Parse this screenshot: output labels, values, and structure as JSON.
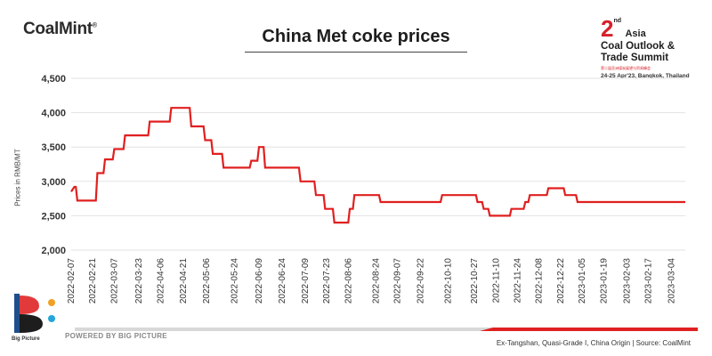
{
  "brand": {
    "logo_text": "CoalMint",
    "registered": "®"
  },
  "event": {
    "number": "2",
    "ordinal": "nd",
    "region": "Asia",
    "line1": "Coal Outlook &",
    "line2": "Trade Summit",
    "subline": "第二届亚洲煤炭展望与贸易峰会",
    "date": "24-25 Apr'23, Bangkok, Thailand"
  },
  "footer": {
    "bp_label": "Big Picture",
    "powered": "POWERED BY BIG PICTURE",
    "source": "Ex-Tangshan, Quasi-Grade I, China Origin | Source: CoalMint"
  },
  "colors": {
    "line": "#e02020",
    "accent": "#d6202a",
    "grid": "#e2e2e2"
  },
  "chart_data": {
    "type": "line",
    "title": "China Met coke prices",
    "xlabel": "",
    "ylabel": "Prices in RMB/MT",
    "ylim": [
      2000,
      4500
    ],
    "yticks": [
      2000,
      2500,
      3000,
      3500,
      4000,
      4500
    ],
    "ytick_labels": [
      "2,000",
      "2,500",
      "3,000",
      "3,500",
      "4,000",
      "4,500"
    ],
    "grid": true,
    "xticks": [
      "2022-02-07",
      "2022-02-21",
      "2022-03-07",
      "2022-03-23",
      "2022-04-06",
      "2022-04-21",
      "2022-05-06",
      "2022-05-24",
      "2022-06-09",
      "2022-06-24",
      "2022-07-09",
      "2022-07-23",
      "2022-08-06",
      "2022-08-24",
      "2022-09-07",
      "2022-09-22",
      "2022-10-10",
      "2022-10-27",
      "2022-11-10",
      "2022-11-24",
      "2022-12-08",
      "2022-12-22",
      "2023-01-05",
      "2023-01-19",
      "2023-02-03",
      "2023-02-17",
      "2023-03-04"
    ],
    "series": [
      {
        "x": [
          "2022-02-07",
          "2022-02-09",
          "2022-02-10",
          "2022-02-11",
          "2022-02-23",
          "2022-02-24",
          "2022-02-28",
          "2022-03-01",
          "2022-03-06",
          "2022-03-07",
          "2022-03-13",
          "2022-03-14",
          "2022-03-29",
          "2022-03-30",
          "2022-04-12",
          "2022-04-13",
          "2022-04-25",
          "2022-04-26",
          "2022-05-04",
          "2022-05-05",
          "2022-05-09",
          "2022-05-10",
          "2022-05-16",
          "2022-05-17",
          "2022-05-23",
          "2022-05-24",
          "2022-06-03",
          "2022-06-04",
          "2022-06-08",
          "2022-06-09",
          "2022-06-12",
          "2022-06-13",
          "2022-06-16",
          "2022-06-17",
          "2022-06-18",
          "2022-06-19",
          "2022-07-05",
          "2022-07-06",
          "2022-07-15",
          "2022-07-16",
          "2022-07-21",
          "2022-07-22",
          "2022-07-27",
          "2022-07-28",
          "2022-08-06",
          "2022-08-07",
          "2022-08-09",
          "2022-08-10",
          "2022-08-26",
          "2022-08-27",
          "2022-10-05",
          "2022-10-06",
          "2022-10-28",
          "2022-10-29",
          "2022-11-01",
          "2022-11-02",
          "2022-11-05",
          "2022-11-06",
          "2022-11-19",
          "2022-11-20",
          "2022-11-28",
          "2022-11-29",
          "2022-12-01",
          "2022-12-02",
          "2022-12-13",
          "2022-12-14",
          "2022-12-24",
          "2022-12-25",
          "2023-01-01",
          "2023-01-02",
          "2023-01-06",
          "2023-01-07",
          "2023-03-13"
        ],
        "y": [
          2850,
          2920,
          2920,
          2720,
          2720,
          3120,
          3120,
          3320,
          3320,
          3470,
          3470,
          3670,
          3670,
          3870,
          3870,
          4070,
          4070,
          3800,
          3800,
          3600,
          3600,
          3400,
          3400,
          3200,
          3200,
          3200,
          3200,
          3300,
          3300,
          3500,
          3500,
          3200,
          3200,
          3200,
          3200,
          3200,
          3200,
          3000,
          3000,
          2800,
          2800,
          2600,
          2600,
          2400,
          2400,
          2600,
          2600,
          2800,
          2800,
          2700,
          2700,
          2800,
          2800,
          2700,
          2700,
          2600,
          2600,
          2500,
          2500,
          2600,
          2600,
          2700,
          2700,
          2800,
          2800,
          2900,
          2900,
          2800,
          2800,
          2700,
          2700,
          2700,
          2700
        ]
      }
    ]
  }
}
